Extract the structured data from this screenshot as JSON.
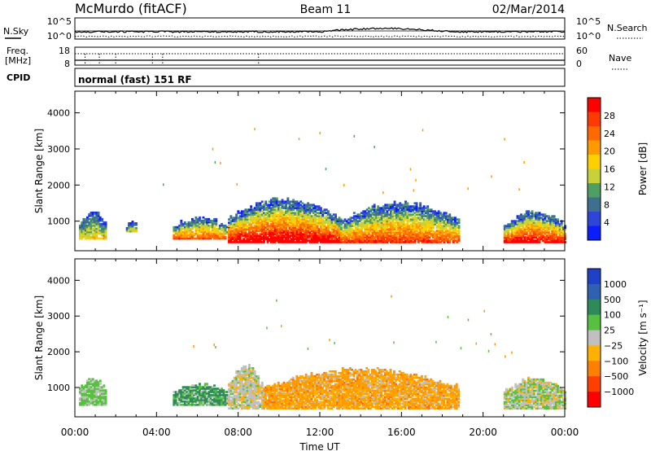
{
  "header": {
    "station": "McMurdo (fitACF)",
    "beam": "Beam 11",
    "date": "02/Mar/2014"
  },
  "top_panels": {
    "nsky_label": "N.Sky",
    "nsky_ticks": [
      "10^5",
      "10^0"
    ],
    "nsearch_label": "N.Search",
    "nsearch_ticks": [
      "10^5",
      "10^0"
    ],
    "freq_label": "Freq.",
    "freq_unit": "[MHz]",
    "freq_ticks": [
      "18",
      "8"
    ],
    "nave_label": "Nave",
    "nave_ticks": [
      "60",
      "0"
    ],
    "cpid_label": "CPID",
    "cpid_text": "normal (fast) 151 RF"
  },
  "chart_data": [
    {
      "type": "heatmap",
      "title": "",
      "xlabel": "Time UT",
      "ylabel": "Slant Range [km]",
      "x_ticks": [
        "00:00",
        "04:00",
        "08:00",
        "12:00",
        "16:00",
        "20:00",
        "00:00"
      ],
      "y_ticks": [
        "1000",
        "2000",
        "3000",
        "4000"
      ],
      "xlim_hours": [
        0,
        24
      ],
      "ylim_km": [
        180,
        4600
      ],
      "colorbar": {
        "label": "Power [dB]",
        "ticks": [
          "4",
          "8",
          "12",
          "16",
          "20",
          "24",
          "28"
        ],
        "range": [
          0,
          30
        ],
        "colors": [
          "#0a1eff",
          "#2f45d8",
          "#3f6f8f",
          "#4f9e62",
          "#c8d03a",
          "#ffd000",
          "#ff9a00",
          "#ff6a00",
          "#ff3a00",
          "#ff0000"
        ]
      },
      "scatter_regions": [
        {
          "t_start": 0.2,
          "t_end": 1.5,
          "r_low": 500,
          "r_high": 1250,
          "core_db": 12
        },
        {
          "t_start": 2.5,
          "t_end": 3.0,
          "r_low": 700,
          "r_high": 1000,
          "core_db": 10
        },
        {
          "t_start": 4.8,
          "t_end": 7.5,
          "r_low": 500,
          "r_high": 1100,
          "core_db": 20
        },
        {
          "t_start": 7.5,
          "t_end": 13.0,
          "r_low": 400,
          "r_high": 1600,
          "core_db": 28
        },
        {
          "t_start": 13.0,
          "t_end": 18.8,
          "r_low": 400,
          "r_high": 1500,
          "core_db": 22
        },
        {
          "t_start": 21.0,
          "t_end": 24.0,
          "r_low": 400,
          "r_high": 1250,
          "core_db": 26
        }
      ]
    },
    {
      "type": "heatmap",
      "title": "",
      "xlabel": "Time UT",
      "ylabel": "Slant Range [km]",
      "x_ticks": [
        "00:00",
        "04:00",
        "08:00",
        "12:00",
        "16:00",
        "20:00",
        "00:00"
      ],
      "y_ticks": [
        "1000",
        "2000",
        "3000",
        "4000"
      ],
      "xlim_hours": [
        0,
        24
      ],
      "ylim_km": [
        180,
        4600
      ],
      "colorbar": {
        "label": "Velocity [m s⁻¹]",
        "ticks": [
          "1000",
          "500",
          "100",
          "25",
          "−25",
          "−100",
          "−500",
          "−1000"
        ],
        "range": [
          -1500,
          1500
        ],
        "colors": [
          "#2040c8",
          "#3060b0",
          "#2f8a5a",
          "#58c040",
          "#c0c0c0",
          "#ffb000",
          "#ff8000",
          "#ff4000",
          "#ff0000"
        ]
      },
      "scatter_regions": [
        {
          "t_start": 0.2,
          "t_end": 1.5,
          "r_low": 500,
          "r_high": 1250,
          "dominant": "green"
        },
        {
          "t_start": 4.8,
          "t_end": 7.5,
          "r_low": 500,
          "r_high": 1100,
          "dominant": "dark green"
        },
        {
          "t_start": 7.5,
          "t_end": 9.2,
          "r_low": 400,
          "r_high": 1600,
          "dominant": "grey"
        },
        {
          "t_start": 9.2,
          "t_end": 18.8,
          "r_low": 400,
          "r_high": 1500,
          "dominant": "orange"
        },
        {
          "t_start": 21.0,
          "t_end": 24.0,
          "r_low": 400,
          "r_high": 1250,
          "dominant": "grey/green"
        }
      ]
    }
  ]
}
